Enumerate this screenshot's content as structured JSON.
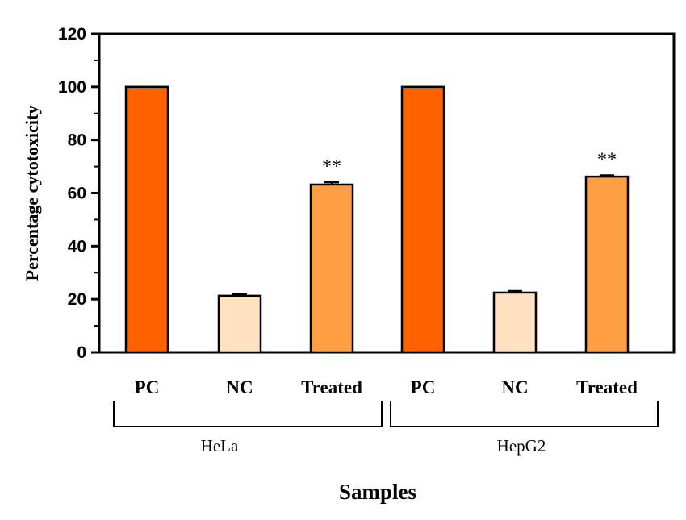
{
  "chart_data": {
    "type": "bar",
    "ylabel": "Percentage cytotoxicity",
    "xlabel": "Samples",
    "ylim": [
      0,
      120
    ],
    "yticks": [
      0,
      20,
      40,
      60,
      80,
      100,
      120
    ],
    "grid": false,
    "groups": [
      {
        "name": "HeLa",
        "bars": [
          {
            "label": "PC",
            "value": 100,
            "error": 0,
            "color": "#FF6100",
            "annotation": ""
          },
          {
            "label": "NC",
            "value": 21.3,
            "error": 0.6,
            "color": "#FFE0C0",
            "annotation": ""
          },
          {
            "label": "Treated",
            "value": 63.2,
            "error": 0.9,
            "color": "#FF9E42",
            "annotation": "**"
          }
        ]
      },
      {
        "name": "HepG2",
        "bars": [
          {
            "label": "PC",
            "value": 100,
            "error": 0,
            "color": "#FF6100",
            "annotation": ""
          },
          {
            "label": "NC",
            "value": 22.5,
            "error": 0.6,
            "color": "#FFE0C0",
            "annotation": ""
          },
          {
            "label": "Treated",
            "value": 66.2,
            "error": 0.5,
            "color": "#FF9E42",
            "annotation": "**"
          }
        ]
      }
    ]
  }
}
